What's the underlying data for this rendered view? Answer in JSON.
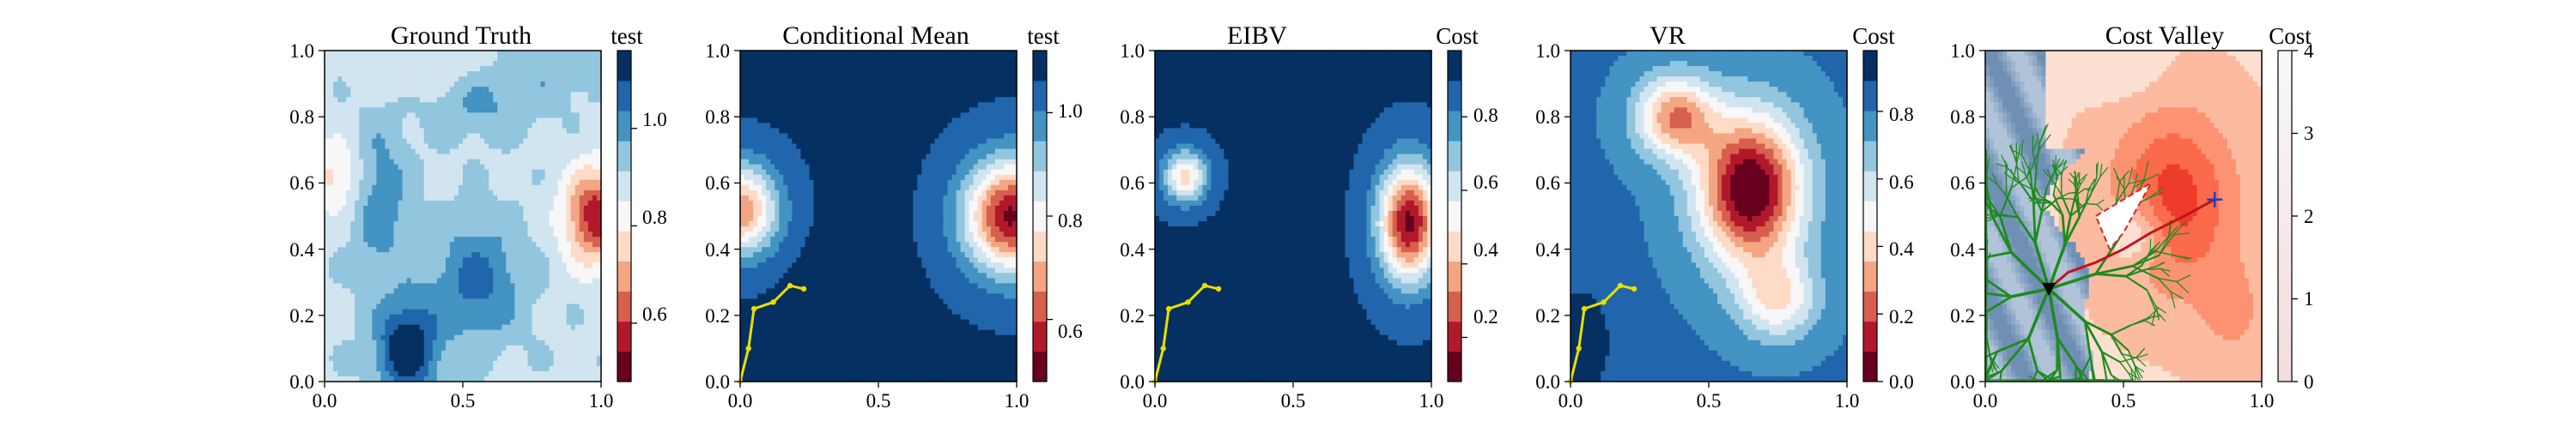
{
  "figure": {
    "panels": [
      {
        "title": "Ground Truth",
        "colorbar": {
          "title": "test",
          "ticks": [
            "0.6",
            "0.8",
            "1.0"
          ]
        }
      },
      {
        "title": "Conditional Mean",
        "colorbar": {
          "title": "test",
          "ticks": [
            "0.6",
            "0.8",
            "1.0"
          ]
        }
      },
      {
        "title": "EIBV",
        "colorbar": {
          "title": "Cost",
          "ticks": [
            "0.2",
            "0.4",
            "0.6",
            "0.8"
          ]
        }
      },
      {
        "title": "VR",
        "colorbar": {
          "title": "Cost",
          "ticks": [
            "0.0",
            "0.2",
            "0.4",
            "0.6",
            "0.8"
          ]
        }
      },
      {
        "title": "Cost Valley",
        "colorbar": {
          "title": "Cost",
          "ticks": [
            "0",
            "1",
            "2",
            "3",
            "4"
          ]
        }
      }
    ]
  },
  "chart_data": [
    {
      "type": "heatmap",
      "title": "Ground Truth",
      "colormap": "RdBu",
      "xlim": [
        0,
        1
      ],
      "ylim": [
        0,
        1
      ],
      "xticks": [
        "0.0",
        "0.5",
        "1.0"
      ],
      "yticks": [
        "0.0",
        "0.2",
        "0.4",
        "0.6",
        "0.8",
        "1.0"
      ],
      "colorbar": {
        "title": "test",
        "range": [
          0.48,
          1.16
        ],
        "ticks": [
          0.6,
          0.8,
          1.0
        ]
      },
      "features": [
        {
          "kind": "low",
          "x": 0.97,
          "y": 0.5,
          "value": 0.5
        },
        {
          "kind": "low",
          "x": 0.05,
          "y": 0.62,
          "value": 0.7
        },
        {
          "kind": "high",
          "x": 0.32,
          "y": 0.1,
          "value": 1.14
        },
        {
          "kind": "high",
          "x": 0.62,
          "y": 0.85,
          "value": 1.0
        }
      ]
    },
    {
      "type": "heatmap",
      "title": "Conditional Mean",
      "colormap": "RdBu",
      "xlim": [
        0,
        1
      ],
      "ylim": [
        0,
        1
      ],
      "xticks": [
        "0.0",
        "0.5",
        "1.0"
      ],
      "yticks": [
        "0.0",
        "0.2",
        "0.4",
        "0.6",
        "0.8",
        "1.0"
      ],
      "colorbar": {
        "title": "test",
        "range": [
          0.48,
          1.12
        ],
        "ticks": [
          0.6,
          0.8,
          1.0
        ]
      },
      "features": [
        {
          "kind": "low",
          "x": 0.98,
          "y": 0.5,
          "value": 0.5
        },
        {
          "kind": "low",
          "x": 0.02,
          "y": 0.52,
          "value": 0.6
        },
        {
          "kind": "high",
          "x": 0.3,
          "y": 0.05,
          "value": 1.1
        }
      ],
      "path": {
        "x": [
          0.0,
          0.03,
          0.05,
          0.12,
          0.18,
          0.23
        ],
        "y": [
          0.0,
          0.1,
          0.22,
          0.24,
          0.29,
          0.28
        ]
      }
    },
    {
      "type": "heatmap",
      "title": "EIBV",
      "colormap": "RdBu",
      "xlim": [
        0,
        1
      ],
      "ylim": [
        0,
        1
      ],
      "xticks": [
        "0.0",
        "0.5",
        "1.0"
      ],
      "yticks": [
        "0.0",
        "0.2",
        "0.4",
        "0.6",
        "0.8",
        "1.0"
      ],
      "colorbar": {
        "title": "Cost",
        "range": [
          0.08,
          0.98
        ],
        "ticks": [
          0.2,
          0.4,
          0.6,
          0.8
        ]
      },
      "features": [
        {
          "kind": "low",
          "x": 0.92,
          "y": 0.48,
          "value": 0.1
        },
        {
          "kind": "low",
          "x": 0.1,
          "y": 0.62,
          "value": 0.4
        },
        {
          "kind": "high",
          "x": 0.3,
          "y": 0.05,
          "value": 0.95
        }
      ],
      "path": {
        "x": [
          0.0,
          0.03,
          0.05,
          0.12,
          0.18,
          0.23
        ],
        "y": [
          0.0,
          0.1,
          0.22,
          0.24,
          0.29,
          0.28
        ]
      }
    },
    {
      "type": "heatmap",
      "title": "VR",
      "colormap": "RdBu",
      "xlim": [
        0,
        1
      ],
      "ylim": [
        0,
        1
      ],
      "xticks": [
        "0.0",
        "0.5",
        "1.0"
      ],
      "yticks": [
        "0.0",
        "0.2",
        "0.4",
        "0.6",
        "0.8",
        "1.0"
      ],
      "colorbar": {
        "title": "Cost",
        "range": [
          0.0,
          0.98
        ],
        "ticks": [
          0.0,
          0.2,
          0.4,
          0.6,
          0.8
        ]
      },
      "features": [
        {
          "kind": "low",
          "x": 0.62,
          "y": 0.6,
          "value": 0.0
        },
        {
          "kind": "high",
          "x": 0.05,
          "y": 0.12,
          "value": 0.95
        }
      ],
      "path": {
        "x": [
          0.0,
          0.03,
          0.05,
          0.12,
          0.18,
          0.23
        ],
        "y": [
          0.0,
          0.1,
          0.22,
          0.24,
          0.29,
          0.28
        ]
      }
    },
    {
      "type": "heatmap",
      "title": "Cost Valley",
      "colormap": "Reds",
      "xlim": [
        0,
        1
      ],
      "ylim": [
        0,
        1
      ],
      "xticks": [
        "0.0",
        "0.5",
        "1.0"
      ],
      "yticks": [
        "0.0",
        "0.2",
        "0.4",
        "0.6",
        "0.8",
        "1.0"
      ],
      "colorbar": {
        "title": "Cost",
        "range": [
          0,
          4
        ],
        "ticks": [
          0,
          1,
          2,
          3,
          4
        ]
      },
      "obstacle": {
        "x": [
          0.4,
          0.6,
          0.5,
          0.45
        ],
        "y": [
          0.5,
          0.6,
          0.45,
          0.4
        ]
      },
      "start": {
        "x": 0.23,
        "y": 0.28
      },
      "target": {
        "x": 0.83,
        "y": 0.55
      },
      "path": {
        "x": [
          0.23,
          0.3,
          0.4,
          0.5,
          0.6,
          0.72,
          0.83
        ],
        "y": [
          0.28,
          0.33,
          0.36,
          0.4,
          0.45,
          0.5,
          0.55
        ]
      }
    }
  ]
}
